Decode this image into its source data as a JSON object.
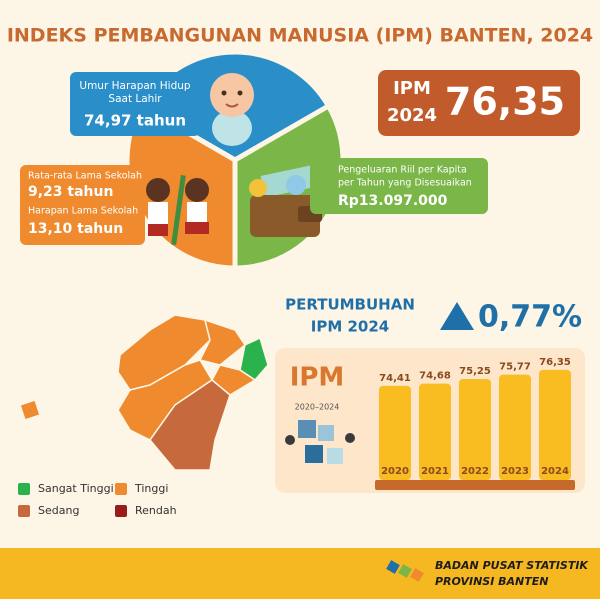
{
  "title": "INDEKS PEMBANGUNAN MANUSIA (IPM) BANTEN, 2024",
  "ipm_box": {
    "label": "IPM",
    "year": "2024",
    "value": "76,35"
  },
  "components": {
    "life": {
      "lines": [
        "Umur Harapan Hidup",
        "Saat Lahir"
      ],
      "value": "74,97 tahun"
    },
    "education": {
      "mean_label": "Rata-rata Lama Sekolah",
      "mean_value": "9,23 tahun",
      "expected_label": "Harapan Lama Sekolah",
      "expected_value": "13,10 tahun"
    },
    "expenditure": {
      "lines": [
        "Pengeluaran Riil per Kapita",
        "per Tahun yang Disesuaikan"
      ],
      "value": "Rp13.097.000"
    }
  },
  "growth": {
    "lines": [
      "PERTUMBUHAN",
      "IPM 2024"
    ],
    "value": "0,77%"
  },
  "legend": {
    "items": [
      "Sangat Tinggi",
      "Tinggi",
      "Sedang",
      "Rendah"
    ]
  },
  "chart_data": {
    "type": "bar",
    "title": "IPM",
    "subtitle": "2020–2024",
    "categories": [
      "2020",
      "2021",
      "2022",
      "2023",
      "2024"
    ],
    "values": [
      74.41,
      74.68,
      75.25,
      75.77,
      76.35
    ],
    "value_labels": [
      "74,41",
      "74,68",
      "75,25",
      "75,77",
      "76,35"
    ],
    "color": "#f9bc21",
    "ylim": [
      63,
      77
    ]
  },
  "footer": {
    "lines": [
      "BADAN PUSAT STATISTIK",
      "PROVINSI BANTEN"
    ]
  }
}
